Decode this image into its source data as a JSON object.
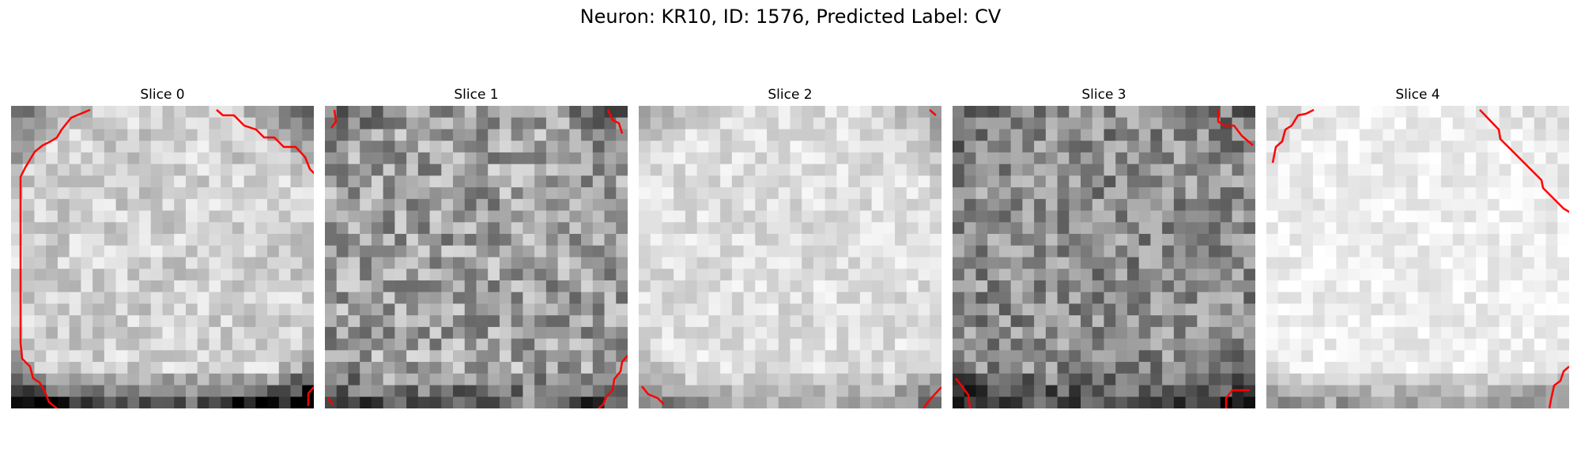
{
  "figure": {
    "title": "Neuron: KR10, ID: 1576, Predicted Label: CV",
    "colormap": "gray",
    "contour_color": "#ff0000",
    "background": "#ffffff"
  },
  "slices": [
    {
      "title": "Slice 0"
    },
    {
      "title": "Slice 1"
    },
    {
      "title": "Slice 2"
    },
    {
      "title": "Slice 3"
    },
    {
      "title": "Slice 4"
    }
  ]
}
